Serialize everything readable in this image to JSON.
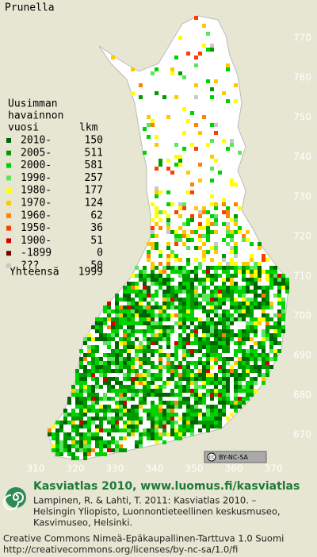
{
  "title": "Prunella",
  "legend": {
    "heading": [
      "Uusimman",
      "havainnon"
    ],
    "columns": [
      "vuosi",
      "lkm"
    ],
    "rows": [
      {
        "label": "2010-",
        "count": 150,
        "color": "#006400"
      },
      {
        "label": "2005-",
        "count": 511,
        "color": "#009a00"
      },
      {
        "label": "2000-",
        "count": 581,
        "color": "#00d200"
      },
      {
        "label": "1990-",
        "count": 257,
        "color": "#5ae65a"
      },
      {
        "label": "1980-",
        "count": 177,
        "color": "#ffff00"
      },
      {
        "label": "1970-",
        "count": 124,
        "color": "#ffc800"
      },
      {
        "label": "1960-",
        "count": 62,
        "color": "#ff8200"
      },
      {
        "label": "1950-",
        "count": 36,
        "color": "#ff3c00"
      },
      {
        "label": "1900-",
        "count": 51,
        "color": "#d20000"
      },
      {
        "label": "-1899",
        "count": 0,
        "color": "#780000"
      },
      {
        "label": "???",
        "count": 50,
        "color": "#c8c8c8"
      }
    ],
    "total_label": "Yhteensä",
    "total": 1999
  },
  "y_grid": [
    770,
    760,
    750,
    740,
    730,
    720,
    710,
    700,
    690,
    680,
    670
  ],
  "x_grid": [
    310,
    320,
    330,
    340,
    350,
    360,
    370
  ],
  "license_badge": [
    "cc",
    "BY-NC-SA"
  ],
  "footer": {
    "title": "Kasviatlas 2010, www.luomus.fi/kasviatlas",
    "citation": [
      "Lampinen, R. & Lahti, T. 2011: Kasviatlas 2010. –",
      "Helsingin Yliopisto, Luonnontieteellinen keskusmuseo,",
      "Kasvimuseo, Helsinki."
    ],
    "license": [
      "Creative Commons Nimeä-Epäkaupallinen-Tarttuva 1.0 Suomi",
      "http://creativecommons.org/licenses/by-nc-sa/1.0/fi"
    ]
  }
}
